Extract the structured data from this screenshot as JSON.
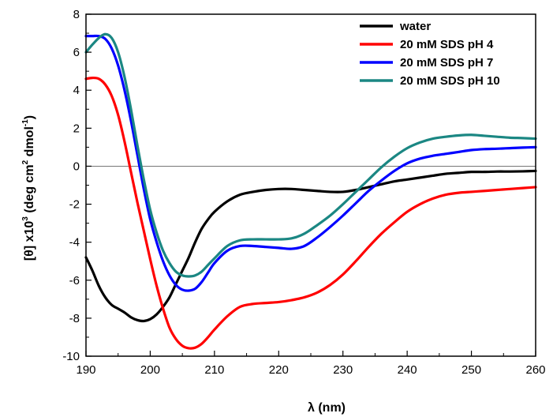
{
  "chart_data": {
    "type": "line",
    "xlabel": "λ (nm)",
    "ylabel_prefix": "[θ] x10",
    "ylabel_exp1": "3",
    "ylabel_mid": " (deg cm",
    "ylabel_exp2": "2",
    "ylabel_mid2": " dmol",
    "ylabel_exp3": "-1",
    "ylabel_suffix": ")",
    "xlim": [
      190,
      260
    ],
    "ylim": [
      -10,
      8
    ],
    "xticks": [
      190,
      200,
      210,
      220,
      230,
      240,
      250,
      260
    ],
    "yticks": [
      -10,
      -8,
      -6,
      -4,
      -2,
      0,
      2,
      4,
      6,
      8
    ],
    "zero_line": true,
    "legend_position": "top-right",
    "series": [
      {
        "name": "water",
        "color": "#000000",
        "x": [
          190,
          191,
          192,
          193,
          194,
          195,
          196,
          197,
          198,
          199,
          200,
          201,
          202,
          203,
          204,
          205,
          206,
          207,
          208,
          209,
          210,
          212,
          214,
          216,
          218,
          220,
          222,
          224,
          226,
          228,
          230,
          232,
          234,
          236,
          238,
          240,
          242,
          244,
          246,
          248,
          250,
          252,
          254,
          256,
          258,
          260
        ],
        "y": [
          -4.8,
          -5.5,
          -6.3,
          -6.9,
          -7.3,
          -7.5,
          -7.7,
          -7.95,
          -8.1,
          -8.15,
          -8.05,
          -7.8,
          -7.4,
          -6.9,
          -6.2,
          -5.5,
          -4.8,
          -4.0,
          -3.3,
          -2.8,
          -2.4,
          -1.85,
          -1.5,
          -1.35,
          -1.25,
          -1.2,
          -1.2,
          -1.25,
          -1.3,
          -1.35,
          -1.35,
          -1.25,
          -1.1,
          -0.95,
          -0.8,
          -0.7,
          -0.6,
          -0.5,
          -0.4,
          -0.35,
          -0.3,
          -0.3,
          -0.28,
          -0.28,
          -0.27,
          -0.25
        ]
      },
      {
        "name": "20 mM SDS pH 4",
        "color": "#ff0000",
        "x": [
          190,
          191,
          192,
          193,
          194,
          195,
          196,
          197,
          198,
          199,
          200,
          201,
          202,
          203,
          204,
          205,
          206,
          207,
          208,
          209,
          210,
          212,
          214,
          216,
          218,
          220,
          222,
          224,
          226,
          228,
          230,
          232,
          234,
          236,
          238,
          240,
          242,
          244,
          246,
          248,
          250,
          252,
          254,
          256,
          258,
          260
        ],
        "y": [
          4.6,
          4.65,
          4.6,
          4.3,
          3.7,
          2.7,
          1.3,
          -0.3,
          -1.9,
          -3.4,
          -4.9,
          -6.3,
          -7.5,
          -8.5,
          -9.1,
          -9.45,
          -9.58,
          -9.55,
          -9.35,
          -9.0,
          -8.6,
          -7.9,
          -7.4,
          -7.25,
          -7.2,
          -7.15,
          -7.05,
          -6.9,
          -6.65,
          -6.25,
          -5.7,
          -5.0,
          -4.25,
          -3.55,
          -2.95,
          -2.4,
          -2.0,
          -1.7,
          -1.5,
          -1.4,
          -1.35,
          -1.3,
          -1.25,
          -1.2,
          -1.15,
          -1.1
        ]
      },
      {
        "name": "20 mM SDS pH 7",
        "color": "#0000ff",
        "x": [
          190,
          191,
          192,
          193,
          194,
          195,
          196,
          197,
          198,
          199,
          200,
          201,
          202,
          203,
          204,
          205,
          206,
          207,
          208,
          209,
          210,
          212,
          214,
          216,
          218,
          220,
          222,
          224,
          226,
          228,
          230,
          232,
          234,
          236,
          238,
          240,
          242,
          244,
          246,
          248,
          250,
          252,
          254,
          256,
          258,
          260
        ],
        "y": [
          6.85,
          6.85,
          6.85,
          6.7,
          6.2,
          5.3,
          4.0,
          2.4,
          0.6,
          -1.2,
          -2.8,
          -4.0,
          -5.0,
          -5.75,
          -6.25,
          -6.5,
          -6.55,
          -6.45,
          -6.1,
          -5.6,
          -5.1,
          -4.45,
          -4.2,
          -4.2,
          -4.25,
          -4.3,
          -4.35,
          -4.2,
          -3.75,
          -3.2,
          -2.6,
          -1.95,
          -1.3,
          -0.75,
          -0.25,
          0.15,
          0.4,
          0.55,
          0.65,
          0.75,
          0.85,
          0.9,
          0.92,
          0.95,
          0.98,
          1.0
        ]
      },
      {
        "name": "20 mM SDS pH 10",
        "color": "#1b8783",
        "x": [
          190,
          191,
          192,
          193,
          194,
          195,
          196,
          197,
          198,
          199,
          200,
          201,
          202,
          203,
          204,
          205,
          206,
          207,
          208,
          209,
          210,
          212,
          214,
          216,
          218,
          220,
          222,
          224,
          226,
          228,
          230,
          232,
          234,
          236,
          238,
          240,
          242,
          244,
          246,
          248,
          250,
          252,
          254,
          256,
          258,
          260
        ],
        "y": [
          6.0,
          6.4,
          6.75,
          6.95,
          6.75,
          6.0,
          4.7,
          3.0,
          1.1,
          -0.7,
          -2.3,
          -3.5,
          -4.45,
          -5.1,
          -5.55,
          -5.75,
          -5.8,
          -5.75,
          -5.55,
          -5.2,
          -4.85,
          -4.2,
          -3.9,
          -3.85,
          -3.85,
          -3.85,
          -3.8,
          -3.55,
          -3.1,
          -2.6,
          -2.0,
          -1.35,
          -0.7,
          -0.05,
          0.5,
          0.95,
          1.25,
          1.45,
          1.55,
          1.62,
          1.65,
          1.6,
          1.55,
          1.5,
          1.48,
          1.45
        ]
      }
    ]
  }
}
